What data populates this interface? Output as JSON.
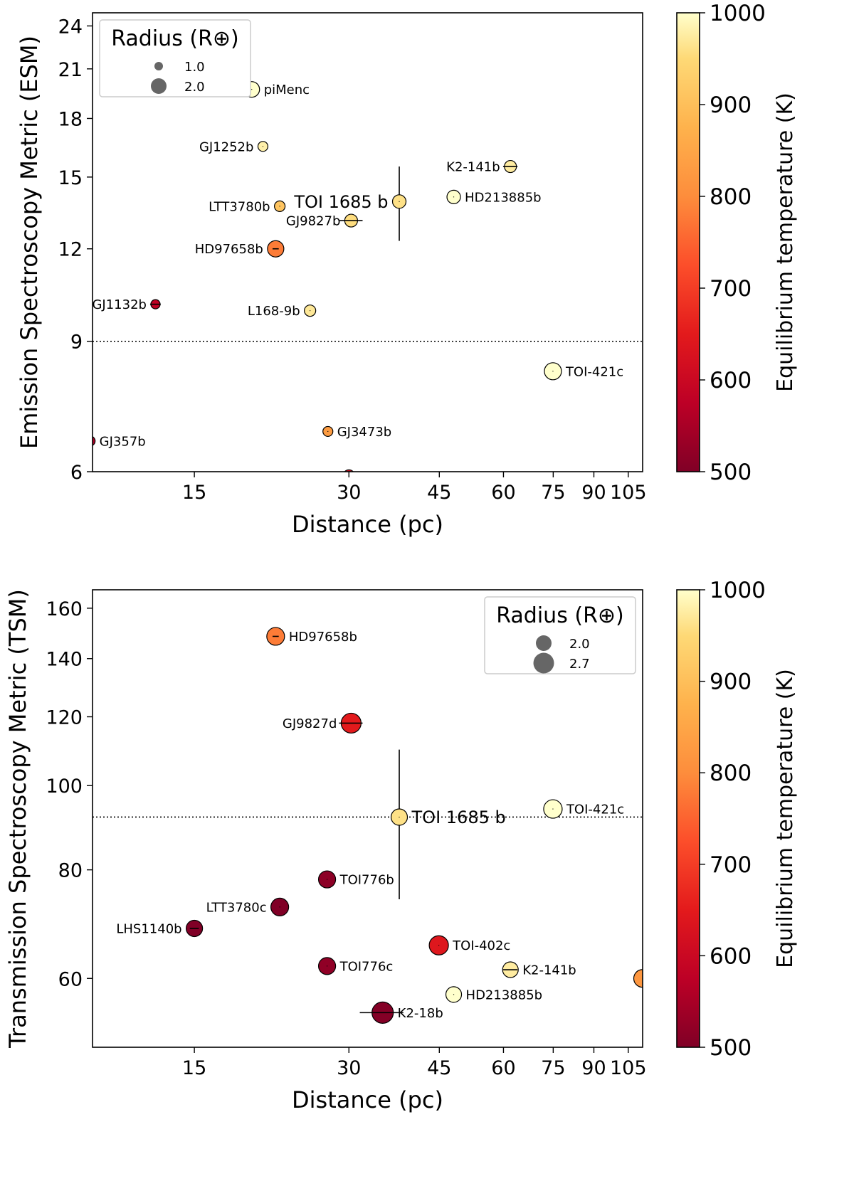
{
  "chart_data": [
    {
      "type": "scatter",
      "title": "",
      "xlabel": "Distance (pc)",
      "ylabel": "Emission Spectroscopy Metric (ESM)",
      "xscale": "log",
      "yscale": "log",
      "xlim": [
        9.5,
        112
      ],
      "ylim": [
        6,
        25
      ],
      "xticks": [
        15,
        30,
        45,
        60,
        75,
        90,
        105
      ],
      "yticks": [
        6,
        9,
        12,
        15,
        18,
        21,
        24
      ],
      "threshold_line": 9,
      "grid": false,
      "legend": {
        "title": "Radius (R⊕)",
        "position": "upper-left",
        "entries": [
          "1.0",
          "2.0"
        ],
        "radii": [
          1.0,
          2.0
        ]
      },
      "colorbar": {
        "label": "Equilibrium temperature (K)",
        "min": 500,
        "max": 1000,
        "ticks": [
          500,
          600,
          700,
          800,
          900,
          1000
        ]
      },
      "points": [
        {
          "name": "piMenc",
          "x": 19.4,
          "y": 19.7,
          "teq": 1000,
          "radius": 2.0,
          "xerr": 0,
          "yerr": 0.05,
          "label_side": "right"
        },
        {
          "name": "GJ1252b",
          "x": 20.4,
          "y": 16.5,
          "teq": 980,
          "radius": 1.2,
          "xerr": 0,
          "yerr": 0,
          "label_side": "left"
        },
        {
          "name": "K2-141b",
          "x": 61.9,
          "y": 15.5,
          "teq": 975,
          "radius": 1.5,
          "xerr": 2,
          "yerr": 0,
          "label_side": "left"
        },
        {
          "name": "HD213885b",
          "x": 48.0,
          "y": 14.1,
          "teq": 1000,
          "radius": 1.7,
          "xerr": 0,
          "yerr": 0,
          "label_side": "right"
        },
        {
          "name": "TOI 1685 b",
          "x": 37.6,
          "y": 13.9,
          "teq": 960,
          "radius": 1.7,
          "xerr": 0,
          "yerr": 1.6,
          "label_side": "left",
          "highlight": true
        },
        {
          "name": "LTT3780b",
          "x": 22.0,
          "y": 13.7,
          "teq": 910,
          "radius": 1.3,
          "xerr": 0,
          "yerr": 0.1,
          "label_side": "left"
        },
        {
          "name": "GJ9827b",
          "x": 30.3,
          "y": 13.1,
          "teq": 955,
          "radius": 1.6,
          "xerr": 1.6,
          "yerr": 0,
          "label_side": "left"
        },
        {
          "name": "HD97658b",
          "x": 21.6,
          "y": 12.0,
          "teq": 780,
          "radius": 2.1,
          "xerr": 0.3,
          "yerr": 0,
          "label_side": "left"
        },
        {
          "name": "GJ1132b",
          "x": 12.6,
          "y": 10.1,
          "teq": 580,
          "radius": 1.1,
          "xerr": 0.3,
          "yerr": 0,
          "label_side": "left"
        },
        {
          "name": "L168-9b",
          "x": 25.2,
          "y": 9.9,
          "teq": 970,
          "radius": 1.4,
          "xerr": 0,
          "yerr": 0,
          "label_side": "left"
        },
        {
          "name": "TOI-421c",
          "x": 74.9,
          "y": 8.2,
          "teq": 1000,
          "radius": 2.2,
          "xerr": 0,
          "yerr": 0.1,
          "label_side": "right"
        },
        {
          "name": "GJ3473b",
          "x": 27.3,
          "y": 6.8,
          "teq": 830,
          "radius": 1.2,
          "xerr": 0,
          "yerr": 0,
          "label_side": "right"
        },
        {
          "name": "GJ357b",
          "x": 9.4,
          "y": 6.6,
          "teq": 560,
          "radius": 1.2,
          "xerr": 0,
          "yerr": 0,
          "label_side": "right"
        },
        {
          "name": "",
          "x": 30.0,
          "y": 5.93,
          "teq": 620,
          "radius": 1.4,
          "xerr": 0,
          "yerr": 0,
          "label_side": "none"
        }
      ]
    },
    {
      "type": "scatter",
      "title": "",
      "xlabel": "Distance (pc)",
      "ylabel": "Transmission Spectroscopy Metric (TSM)",
      "xscale": "log",
      "yscale": "log",
      "xlim": [
        9.5,
        112
      ],
      "ylim": [
        50,
        168
      ],
      "xticks": [
        15,
        30,
        45,
        60,
        75,
        90,
        105
      ],
      "yticks": [
        60,
        80,
        100,
        120,
        140,
        160
      ],
      "threshold_line": 92,
      "grid": false,
      "legend": {
        "title": "Radius (R⊕)",
        "position": "upper-right",
        "entries": [
          "2.0",
          "2.7"
        ],
        "radii": [
          2.0,
          2.7
        ]
      },
      "colorbar": {
        "label": "Equilibrium temperature (K)",
        "min": 500,
        "max": 1000,
        "ticks": [
          500,
          600,
          700,
          800,
          900,
          1000
        ]
      },
      "points": [
        {
          "name": "HD97658b",
          "x": 21.6,
          "y": 148.5,
          "teq": 780,
          "radius": 2.3,
          "xerr": 0.3,
          "yerr": 0,
          "label_side": "right"
        },
        {
          "name": "GJ9827d",
          "x": 30.3,
          "y": 118,
          "teq": 650,
          "radius": 2.6,
          "xerr": 1.6,
          "yerr": 0,
          "label_side": "left"
        },
        {
          "name": "TOI-421c",
          "x": 74.9,
          "y": 94,
          "teq": 1000,
          "radius": 2.4,
          "xerr": 0,
          "yerr": 0.4,
          "label_side": "right"
        },
        {
          "name": "TOI 1685 b",
          "x": 37.6,
          "y": 92,
          "teq": 960,
          "radius": 2.1,
          "xerr": 0,
          "yerr": 18,
          "label_side": "right",
          "highlight": true
        },
        {
          "name": "TOI776b",
          "x": 27.2,
          "y": 78,
          "teq": 515,
          "radius": 2.2,
          "xerr": 0,
          "yerr": 0,
          "label_side": "right"
        },
        {
          "name": "LTT3780c",
          "x": 22.0,
          "y": 72.5,
          "teq": 500,
          "radius": 2.3,
          "xerr": 0,
          "yerr": 0.4,
          "label_side": "left"
        },
        {
          "name": "LHS1140b",
          "x": 15.0,
          "y": 68.5,
          "teq": 500,
          "radius": 2.1,
          "xerr": 0.3,
          "yerr": 0,
          "label_side": "left"
        },
        {
          "name": "TOI-402c",
          "x": 44.9,
          "y": 65.5,
          "teq": 640,
          "radius": 2.5,
          "xerr": 0,
          "yerr": 0.3,
          "label_side": "right"
        },
        {
          "name": "TOI776c",
          "x": 27.2,
          "y": 62,
          "teq": 520,
          "radius": 2.2,
          "xerr": 0,
          "yerr": 0,
          "label_side": "right"
        },
        {
          "name": "K2-141b",
          "x": 61.9,
          "y": 61.4,
          "teq": 975,
          "radius": 2.0,
          "xerr": 2,
          "yerr": 0,
          "label_side": "right"
        },
        {
          "name": "HD213885b",
          "x": 48.0,
          "y": 57.5,
          "teq": 1000,
          "radius": 2.0,
          "xerr": 0,
          "yerr": 0,
          "label_side": "right"
        },
        {
          "name": "K2-18b",
          "x": 34.9,
          "y": 54.8,
          "teq": 505,
          "radius": 2.8,
          "xerr": 3.4,
          "yerr": 0,
          "label_side": "right"
        },
        {
          "name": "",
          "x": 112,
          "y": 60,
          "teq": 820,
          "radius": 2.3,
          "xerr": 0,
          "yerr": 0,
          "label_side": "none"
        }
      ]
    }
  ]
}
